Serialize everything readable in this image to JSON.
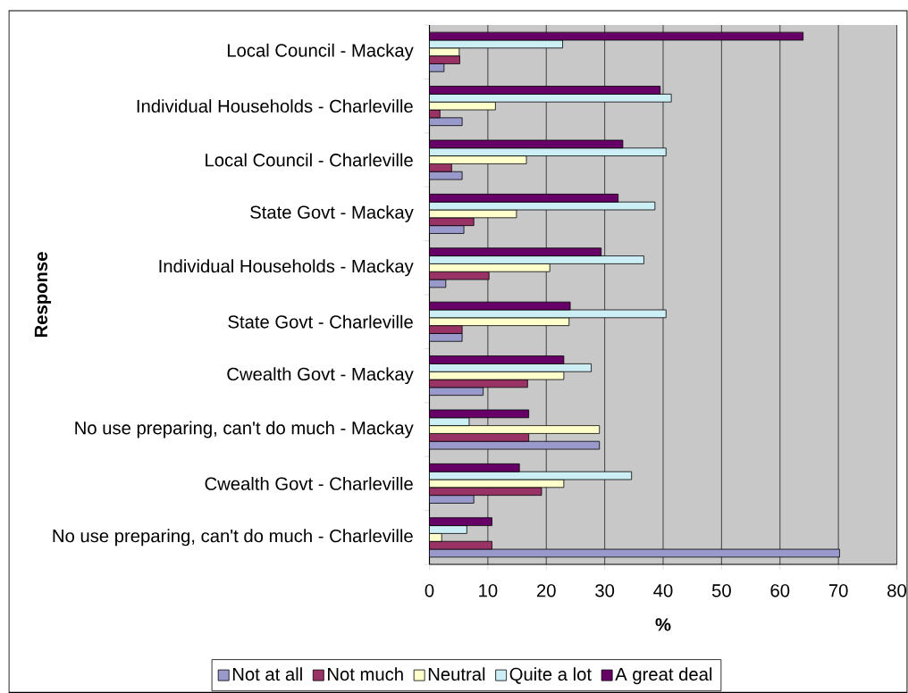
{
  "chart_data": {
    "type": "bar",
    "orientation": "horizontal",
    "xlabel": "%",
    "ylabel": "Response",
    "categories": [
      "Local Council - Mackay",
      "Individual Households - Charleville",
      "Local Council - Charleville",
      "State Govt - Mackay",
      "Individual Households - Mackay",
      "State Govt - Charleville",
      "Cwealth Govt - Mackay",
      "No use preparing, can't do much - Mackay",
      "Cwealth Govt - Charleville",
      "No use preparing, can't do much - Charleville"
    ],
    "series": [
      {
        "name": "Not at all",
        "color": "#9999cc",
        "values": [
          2.5,
          5.6,
          5.6,
          5.9,
          2.8,
          5.6,
          9.2,
          29.1,
          7.6,
          70.2
        ]
      },
      {
        "name": "Not much",
        "color": "#993366",
        "values": [
          5.2,
          1.8,
          3.8,
          7.6,
          10.2,
          5.6,
          16.8,
          17.0,
          19.2,
          10.7
        ]
      },
      {
        "name": "Neutral",
        "color": "#ffffcc",
        "values": [
          5.1,
          11.3,
          16.6,
          14.9,
          20.6,
          23.9,
          23.0,
          29.1,
          23.0,
          2.1
        ]
      },
      {
        "name": "Quite a lot",
        "color": "#cceef5",
        "values": [
          22.8,
          41.4,
          40.5,
          38.6,
          36.7,
          40.5,
          27.7,
          6.8,
          34.6,
          6.4
        ]
      },
      {
        "name": "A great deal",
        "color": "#660066",
        "values": [
          64.0,
          39.5,
          33.1,
          32.3,
          29.4,
          24.1,
          23.0,
          17.0,
          15.4,
          10.7
        ]
      }
    ],
    "xlim": [
      0,
      80
    ],
    "xticks": [
      0,
      10,
      20,
      30,
      40,
      50,
      60,
      70,
      80
    ],
    "grid": "x",
    "legend": "bottom"
  }
}
